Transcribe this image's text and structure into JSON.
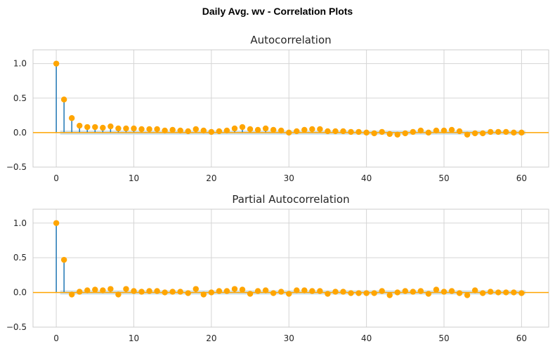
{
  "suptitle": "Daily Avg. wv - Correlation Plots",
  "colors": {
    "stem": "#1f77b4",
    "marker": "#ffa500",
    "zero_line": "#ffa500",
    "conf_band": "#c6dbe8",
    "grid": "#d5d5d5",
    "frame": "#cccccc"
  },
  "chart_data": [
    {
      "type": "stem",
      "title": "Autocorrelation",
      "xlabel": "",
      "ylabel": "",
      "xlim": [
        -3,
        63.5
      ],
      "ylim": [
        -0.5,
        1.2
      ],
      "xticks": [
        0,
        10,
        20,
        30,
        40,
        50,
        60
      ],
      "yticks": [
        -0.5,
        0.0,
        0.5,
        1.0
      ],
      "ytick_labels": [
        "−0.5",
        "0.0",
        "0.5",
        "1.0"
      ],
      "grid": true,
      "confidence_band": 0.03,
      "lags": [
        0,
        1,
        2,
        3,
        4,
        5,
        6,
        7,
        8,
        9,
        10,
        11,
        12,
        13,
        14,
        15,
        16,
        17,
        18,
        19,
        20,
        21,
        22,
        23,
        24,
        25,
        26,
        27,
        28,
        29,
        30,
        31,
        32,
        33,
        34,
        35,
        36,
        37,
        38,
        39,
        40,
        41,
        42,
        43,
        44,
        45,
        46,
        47,
        48,
        49,
        50,
        51,
        52,
        53,
        54,
        55,
        56,
        57,
        58,
        59,
        60
      ],
      "values": [
        1.0,
        0.48,
        0.21,
        0.1,
        0.08,
        0.08,
        0.07,
        0.09,
        0.06,
        0.06,
        0.06,
        0.05,
        0.05,
        0.05,
        0.03,
        0.04,
        0.03,
        0.02,
        0.05,
        0.03,
        0.01,
        0.02,
        0.03,
        0.06,
        0.08,
        0.05,
        0.04,
        0.06,
        0.04,
        0.03,
        0.0,
        0.02,
        0.04,
        0.05,
        0.05,
        0.02,
        0.02,
        0.02,
        0.01,
        0.01,
        0.0,
        -0.01,
        0.01,
        -0.02,
        -0.03,
        -0.01,
        0.01,
        0.03,
        0.0,
        0.03,
        0.03,
        0.04,
        0.02,
        -0.03,
        -0.01,
        -0.01,
        0.01,
        0.01,
        0.01,
        0.0,
        0.0
      ]
    },
    {
      "type": "stem",
      "title": "Partial Autocorrelation",
      "xlabel": "",
      "ylabel": "",
      "xlim": [
        -3,
        63.5
      ],
      "ylim": [
        -0.5,
        1.2
      ],
      "xticks": [
        0,
        10,
        20,
        30,
        40,
        50,
        60
      ],
      "yticks": [
        -0.5,
        0.0,
        0.5,
        1.0
      ],
      "ytick_labels": [
        "−0.5",
        "0.0",
        "0.5",
        "1.0"
      ],
      "grid": true,
      "confidence_band": 0.03,
      "lags": [
        0,
        1,
        2,
        3,
        4,
        5,
        6,
        7,
        8,
        9,
        10,
        11,
        12,
        13,
        14,
        15,
        16,
        17,
        18,
        19,
        20,
        21,
        22,
        23,
        24,
        25,
        26,
        27,
        28,
        29,
        30,
        31,
        32,
        33,
        34,
        35,
        36,
        37,
        38,
        39,
        40,
        41,
        42,
        43,
        44,
        45,
        46,
        47,
        48,
        49,
        50,
        51,
        52,
        53,
        54,
        55,
        56,
        57,
        58,
        59,
        60
      ],
      "values": [
        1.0,
        0.47,
        -0.03,
        0.01,
        0.03,
        0.04,
        0.03,
        0.05,
        -0.03,
        0.05,
        0.02,
        0.01,
        0.02,
        0.02,
        0.0,
        0.01,
        0.01,
        -0.01,
        0.05,
        -0.03,
        0.0,
        0.02,
        0.02,
        0.05,
        0.04,
        -0.02,
        0.02,
        0.03,
        -0.01,
        0.01,
        -0.02,
        0.03,
        0.03,
        0.02,
        0.02,
        -0.02,
        0.01,
        0.01,
        -0.01,
        -0.01,
        -0.01,
        -0.01,
        0.02,
        -0.04,
        0.0,
        0.02,
        0.01,
        0.02,
        -0.02,
        0.04,
        0.01,
        0.02,
        -0.01,
        -0.04,
        0.03,
        -0.01,
        0.01,
        0.0,
        0.0,
        0.0,
        -0.01
      ]
    }
  ]
}
